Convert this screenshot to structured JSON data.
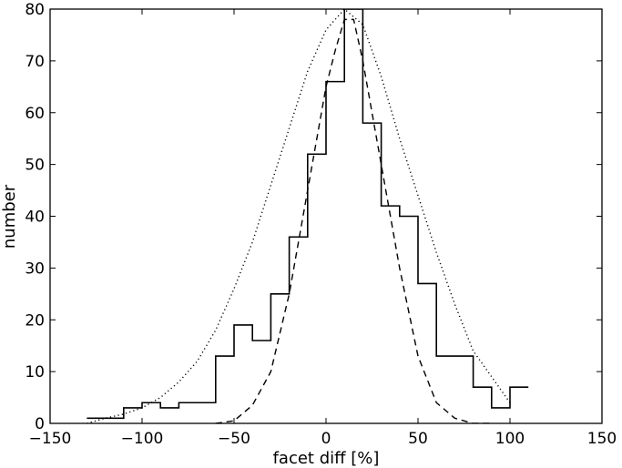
{
  "chart_data": {
    "type": "line",
    "title": "",
    "xlabel": "facet diff [%]",
    "ylabel": "number",
    "xlim": [
      -150,
      150
    ],
    "ylim": [
      0,
      80
    ],
    "xticks": [
      -150,
      -100,
      -50,
      0,
      50,
      100,
      150
    ],
    "xtick_labels": [
      "−150",
      "−100",
      "−50",
      "0",
      "50",
      "100",
      "150"
    ],
    "yticks": [
      0,
      10,
      20,
      30,
      40,
      50,
      60,
      70,
      80
    ],
    "ytick_labels": [
      "0",
      "10",
      "20",
      "30",
      "40",
      "50",
      "60",
      "70",
      "80"
    ],
    "grid": false,
    "legend": "none",
    "series": [
      {
        "style": "step-solid",
        "bin_edges": [
          -130,
          -120,
          -110,
          -100,
          -90,
          -80,
          -70,
          -60,
          -50,
          -40,
          -30,
          -20,
          -10,
          0,
          10,
          20,
          30,
          40,
          50,
          60,
          70,
          80,
          90,
          100,
          110
        ],
        "counts": [
          1,
          1,
          3,
          4,
          3,
          4,
          4,
          13,
          19,
          16,
          25,
          36,
          52,
          66,
          80,
          58,
          42,
          40,
          27,
          13,
          13,
          7,
          3,
          7
        ]
      },
      {
        "style": "dashed",
        "x": [
          -60,
          -50,
          -40,
          -30,
          -20,
          -10,
          0,
          5,
          10,
          15,
          20,
          30,
          40,
          50,
          60,
          70,
          80,
          90
        ],
        "y": [
          0,
          0.5,
          3.5,
          10,
          25,
          45,
          65,
          72,
          78,
          78,
          70,
          50,
          30,
          13,
          4,
          1,
          0,
          0
        ]
      },
      {
        "style": "dotted",
        "x": [
          -130,
          -120,
          -110,
          -100,
          -90,
          -80,
          -70,
          -60,
          -50,
          -40,
          -30,
          -20,
          -10,
          0,
          10,
          20,
          30,
          40,
          50,
          60,
          70,
          80,
          90,
          100
        ],
        "y": [
          0,
          1,
          1.8,
          3,
          5,
          8,
          12,
          18,
          26,
          35,
          46,
          57,
          68,
          76,
          80,
          77,
          67,
          55,
          44,
          33,
          23,
          14,
          9,
          4
        ]
      }
    ]
  }
}
